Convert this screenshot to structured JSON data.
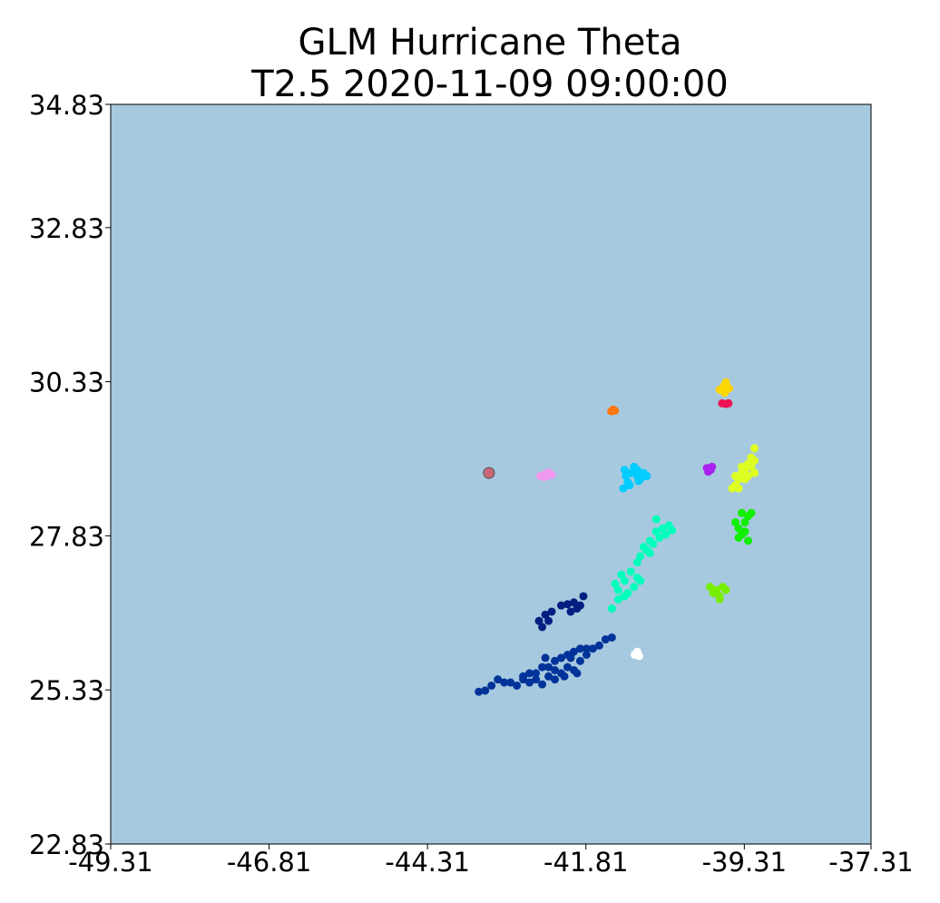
{
  "chart_data": {
    "type": "scatter",
    "title": "GLM Hurricane Theta",
    "subtitle": "T2.5 2020-11-09 09:00:00",
    "xlabel": "",
    "ylabel": "",
    "xlim": [
      -49.31,
      -37.31
    ],
    "ylim": [
      22.83,
      34.83
    ],
    "x_ticks": [
      "-49.31",
      "-46.81",
      "-44.31",
      "-41.81",
      "-39.31",
      "-37.31"
    ],
    "y_ticks": [
      "34.83",
      "32.83",
      "30.33",
      "27.83",
      "25.33",
      "22.83"
    ],
    "grid": false,
    "background": "#a6c9df",
    "center_marker": {
      "x": -43.34,
      "y": 28.85,
      "color": "#cc6677"
    },
    "clusters": [
      {
        "color": "#ffd700",
        "points": [
          [
            -39.7,
            30.2
          ],
          [
            -39.62,
            30.28
          ],
          [
            -39.58,
            30.24
          ],
          [
            -39.66,
            30.22
          ],
          [
            -39.62,
            30.15
          ],
          [
            -39.55,
            30.22
          ],
          [
            -39.6,
            30.32
          ],
          [
            -39.68,
            30.2
          ]
        ]
      },
      {
        "color": "#ee1155",
        "points": [
          [
            -39.66,
            29.98
          ],
          [
            -39.6,
            29.97
          ],
          [
            -39.56,
            29.98
          ]
        ]
      },
      {
        "color": "#ff7711",
        "points": [
          [
            -41.41,
            29.85
          ],
          [
            -41.38,
            29.88
          ],
          [
            -41.35,
            29.86
          ]
        ]
      },
      {
        "color": "#ee99ee",
        "points": [
          [
            -42.53,
            28.8
          ],
          [
            -42.46,
            28.83
          ],
          [
            -42.4,
            28.86
          ],
          [
            -42.35,
            28.82
          ],
          [
            -42.47,
            28.78
          ],
          [
            -42.42,
            28.8
          ]
        ]
      },
      {
        "color": "#aa22ee",
        "points": [
          [
            -39.9,
            28.93
          ],
          [
            -39.84,
            28.9
          ],
          [
            -39.88,
            28.87
          ],
          [
            -39.82,
            28.95
          ]
        ]
      },
      {
        "color": "#00ccff",
        "points": [
          [
            -41.2,
            28.9
          ],
          [
            -41.1,
            28.85
          ],
          [
            -41.0,
            28.8
          ],
          [
            -40.95,
            28.75
          ],
          [
            -41.15,
            28.7
          ],
          [
            -41.05,
            28.95
          ],
          [
            -40.9,
            28.85
          ],
          [
            -41.22,
            28.6
          ],
          [
            -41.12,
            28.65
          ],
          [
            -40.85,
            28.8
          ],
          [
            -41.0,
            28.9
          ],
          [
            -41.18,
            28.8
          ],
          [
            -40.98,
            28.72
          ]
        ]
      },
      {
        "color": "#00ffbb",
        "points": [
          [
            -40.45,
            27.92
          ],
          [
            -40.55,
            27.85
          ],
          [
            -40.65,
            27.8
          ],
          [
            -40.75,
            27.7
          ],
          [
            -40.85,
            27.6
          ],
          [
            -40.95,
            27.5
          ],
          [
            -40.6,
            27.95
          ],
          [
            -40.7,
            27.9
          ],
          [
            -40.8,
            27.75
          ],
          [
            -40.9,
            27.65
          ],
          [
            -41.0,
            27.4
          ],
          [
            -41.1,
            27.25
          ],
          [
            -41.2,
            27.1
          ],
          [
            -41.3,
            26.95
          ],
          [
            -41.2,
            26.85
          ],
          [
            -41.05,
            27.0
          ],
          [
            -41.15,
            26.9
          ],
          [
            -41.35,
            27.05
          ],
          [
            -41.25,
            27.2
          ],
          [
            -41.0,
            27.15
          ],
          [
            -40.95,
            27.1
          ],
          [
            -41.3,
            26.8
          ],
          [
            -41.4,
            26.65
          ],
          [
            -40.7,
            28.1
          ],
          [
            -40.5,
            28.0
          ],
          [
            -40.8,
            27.55
          ]
        ]
      },
      {
        "color": "#ddff22",
        "points": [
          [
            -39.15,
            29.25
          ],
          [
            -39.2,
            29.1
          ],
          [
            -39.25,
            29.0
          ],
          [
            -39.3,
            28.9
          ],
          [
            -39.35,
            28.85
          ],
          [
            -39.4,
            28.75
          ],
          [
            -39.45,
            28.65
          ],
          [
            -39.5,
            28.6
          ],
          [
            -39.3,
            28.75
          ],
          [
            -39.2,
            28.95
          ],
          [
            -39.15,
            29.05
          ],
          [
            -39.25,
            28.8
          ],
          [
            -39.45,
            28.8
          ],
          [
            -39.35,
            28.95
          ],
          [
            -39.15,
            28.85
          ],
          [
            -39.4,
            28.6
          ]
        ]
      },
      {
        "color": "#11ee00",
        "points": [
          [
            -39.35,
            28.2
          ],
          [
            -39.25,
            28.15
          ],
          [
            -39.3,
            28.05
          ],
          [
            -39.4,
            27.95
          ],
          [
            -39.35,
            27.85
          ],
          [
            -39.25,
            27.75
          ],
          [
            -39.3,
            27.9
          ],
          [
            -39.45,
            28.05
          ],
          [
            -39.2,
            28.2
          ],
          [
            -39.4,
            27.8
          ]
        ]
      },
      {
        "color": "#77ee00",
        "points": [
          [
            -39.85,
            27.0
          ],
          [
            -39.75,
            26.95
          ],
          [
            -39.65,
            27.0
          ],
          [
            -39.6,
            26.95
          ],
          [
            -39.7,
            26.85
          ],
          [
            -39.8,
            26.9
          ],
          [
            -39.7,
            26.8
          ]
        ]
      },
      {
        "color": "#ffffff",
        "points": [
          [
            -41.0,
            25.95
          ],
          [
            -40.97,
            25.88
          ],
          [
            -41.04,
            25.9
          ]
        ]
      },
      {
        "color": "#001f80",
        "points": [
          [
            -42.55,
            26.45
          ],
          [
            -42.45,
            26.55
          ],
          [
            -42.4,
            26.45
          ],
          [
            -42.5,
            26.35
          ],
          [
            -42.35,
            26.6
          ],
          [
            -42.2,
            26.7
          ],
          [
            -42.1,
            26.72
          ],
          [
            -42.0,
            26.75
          ],
          [
            -41.9,
            26.7
          ],
          [
            -41.85,
            26.85
          ],
          [
            -42.05,
            26.6
          ],
          [
            -41.95,
            26.65
          ]
        ]
      },
      {
        "color": "#003399",
        "points": [
          [
            -43.5,
            25.3
          ],
          [
            -43.4,
            25.32
          ],
          [
            -43.3,
            25.4
          ],
          [
            -43.2,
            25.5
          ],
          [
            -43.1,
            25.45
          ],
          [
            -43.0,
            25.45
          ],
          [
            -42.9,
            25.4
          ],
          [
            -42.8,
            25.5
          ],
          [
            -42.7,
            25.45
          ],
          [
            -42.6,
            25.5
          ],
          [
            -42.5,
            25.42
          ],
          [
            -42.4,
            25.55
          ],
          [
            -42.3,
            25.5
          ],
          [
            -42.2,
            25.6
          ],
          [
            -42.1,
            25.7
          ],
          [
            -42.0,
            25.65
          ],
          [
            -41.9,
            25.8
          ],
          [
            -41.8,
            25.9
          ],
          [
            -41.7,
            26.0
          ],
          [
            -41.6,
            26.05
          ],
          [
            -41.5,
            26.15
          ],
          [
            -41.4,
            26.18
          ],
          [
            -42.3,
            25.8
          ],
          [
            -42.2,
            25.85
          ],
          [
            -42.1,
            25.9
          ],
          [
            -42.0,
            25.95
          ],
          [
            -41.9,
            26.0
          ],
          [
            -41.8,
            26.0
          ],
          [
            -42.5,
            25.7
          ],
          [
            -42.6,
            25.6
          ],
          [
            -42.4,
            25.7
          ],
          [
            -42.7,
            25.6
          ],
          [
            -42.8,
            25.55
          ],
          [
            -42.3,
            25.65
          ],
          [
            -42.05,
            25.85
          ],
          [
            -41.95,
            25.6
          ],
          [
            -42.15,
            25.55
          ],
          [
            -42.45,
            25.85
          ]
        ]
      }
    ]
  }
}
